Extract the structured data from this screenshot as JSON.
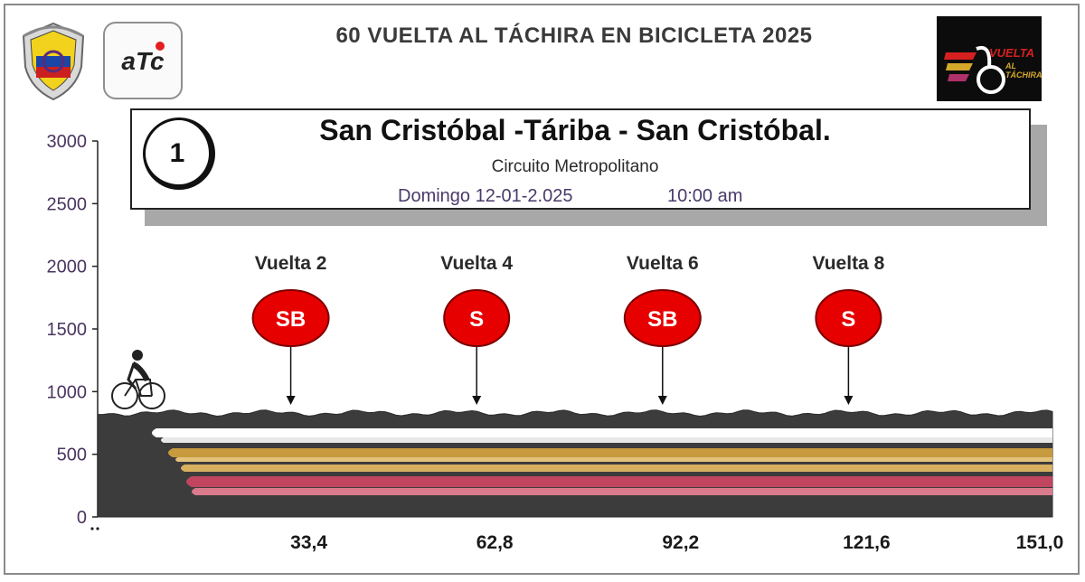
{
  "header": {
    "title": "60 VUELTA AL TÁCHIRA EN BICICLETA 2025",
    "logo_left_text": "aTc",
    "logo_right_text": "VUELTA",
    "logo_right_sub": "AL TÁCHIRA"
  },
  "stage": {
    "number": "1",
    "route": "San Cristóbal -Táriba - San Cristóbal.",
    "type": "Circuito Metropolitano",
    "date": "Domingo 12-01-2.025",
    "time": "10:00 am"
  },
  "chart_data": {
    "type": "area",
    "title": "",
    "xlabel": "",
    "ylabel": "",
    "ylim": [
      0,
      3000
    ],
    "yticks": [
      "0",
      "500",
      "1000",
      "1500",
      "2000",
      "2500",
      "3000"
    ],
    "x_tick_labels": [
      "33,4",
      "62,8",
      "92,2",
      "121,6",
      "151,0"
    ],
    "x_ticks": [
      33.4,
      62.8,
      92.2,
      121.6,
      151.0
    ],
    "xlim": [
      0,
      151.0
    ],
    "grid": false,
    "elevation": {
      "level_m": 800,
      "variation_m": 25
    },
    "band_colors": [
      "#ffffff",
      "#c79a3e",
      "#c1455e"
    ],
    "fill_color": "#3c3c3c",
    "markers": [
      {
        "lap": "Vuelta 2",
        "code": "SB",
        "km": 33.4,
        "color": "#e60000"
      },
      {
        "lap": "Vuelta 4",
        "code": "S",
        "km": 62.8,
        "color": "#e60000"
      },
      {
        "lap": "Vuelta 6",
        "code": "SB",
        "km": 92.2,
        "color": "#e60000"
      },
      {
        "lap": "Vuelta 8",
        "code": "S",
        "km": 121.6,
        "color": "#e60000"
      }
    ]
  }
}
